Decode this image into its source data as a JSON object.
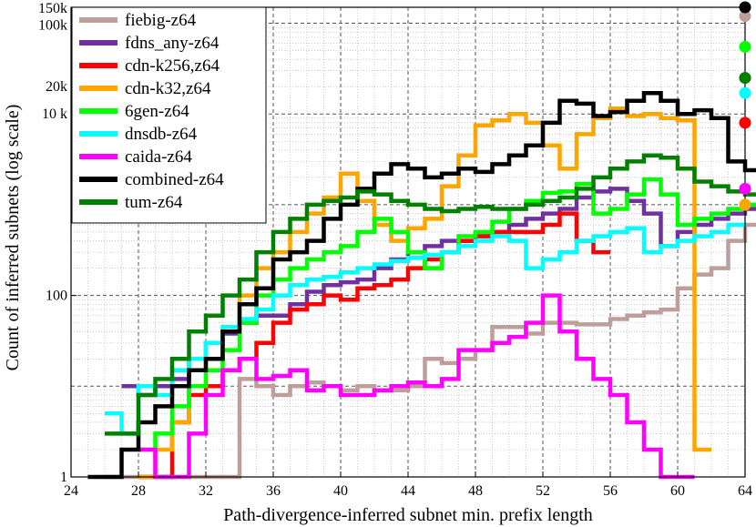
{
  "chart_data": {
    "type": "line",
    "step": true,
    "xlabel": "Path-divergence-inferred subnet min. prefix length",
    "ylabel": "Count of inferred subnets (log scale)",
    "xlim": [
      24,
      64
    ],
    "ylim": [
      1,
      150000
    ],
    "yscale": "log",
    "grid": true,
    "legend_position": "top-left",
    "x_ticks": [
      24,
      28,
      32,
      36,
      40,
      44,
      48,
      52,
      56,
      60,
      64
    ],
    "y_ticks": [
      {
        "value": 1,
        "label": "1"
      },
      {
        "value": 100,
        "label": "100"
      },
      {
        "value": 10000,
        "label": "10 k"
      },
      {
        "value": 20000,
        "label": "20k"
      },
      {
        "value": 100000,
        "label": "100k"
      },
      {
        "value": 150000,
        "label": "150k"
      }
    ],
    "series": [
      {
        "name": "fiebig-z64",
        "color": "#bc9f98",
        "x_start": 26,
        "values": [
          1,
          1,
          1,
          1,
          1,
          1,
          1,
          1,
          12,
          10,
          8,
          10,
          11,
          10,
          9,
          10,
          9,
          9,
          10,
          20,
          18,
          20,
          25,
          45,
          45,
          38,
          50,
          50,
          48,
          48,
          55,
          60,
          65,
          70,
          120,
          170,
          200,
          400,
          600
        ],
        "total": 120000
      },
      {
        "name": "fdns_any-z64",
        "color": "#7030a0",
        "x_start": 27,
        "values": [
          10,
          8,
          10,
          12,
          20,
          30,
          38,
          50,
          60,
          60,
          80,
          110,
          130,
          140,
          150,
          200,
          250,
          300,
          350,
          400,
          400,
          450,
          500,
          600,
          700,
          800,
          900,
          1200,
          1400,
          1500,
          1100,
          800,
          350,
          500,
          600,
          700,
          800,
          900
        ],
        "total": 25000
      },
      {
        "name": "cdn-k256,z64",
        "color": "#ff0000",
        "x_start": 28,
        "values": [
          1,
          1,
          4,
          8,
          10,
          15,
          20,
          30,
          50,
          70,
          80,
          100,
          90,
          120,
          130,
          150,
          200,
          250,
          300,
          400,
          450,
          500,
          500,
          500,
          600,
          800,
          400,
          300
        ],
        "total": 8000
      },
      {
        "name": "cdn-k32,z64",
        "color": "#ffa500",
        "x_start": 28,
        "values": [
          1,
          2,
          4,
          10,
          20,
          40,
          100,
          200,
          300,
          500,
          800,
          1200,
          2200,
          1100,
          600,
          400,
          550,
          700,
          1600,
          3500,
          7500,
          8500,
          10000,
          8000,
          4500,
          2500,
          6000,
          9000,
          11500,
          9500,
          10000,
          9000,
          8500,
          2
        ],
        "total": 1000
      },
      {
        "name": "6gen-z64",
        "color": "#00ff00",
        "x_start": 28,
        "values": [
          2,
          3,
          6,
          10,
          15,
          25,
          50,
          100,
          150,
          200,
          250,
          300,
          350,
          500,
          700,
          500,
          300,
          200,
          300,
          450,
          500,
          650,
          900,
          1100,
          1350,
          1400,
          1700,
          800,
          900,
          1300,
          1900,
          1300,
          600,
          700,
          800,
          900,
          1000,
          1200
        ],
        "total": 55000
      },
      {
        "name": "dnsdb-z64",
        "color": "#00ffff",
        "x_start": 26,
        "values": [
          5,
          3,
          10,
          8,
          15,
          20,
          30,
          45,
          55,
          70,
          100,
          130,
          150,
          160,
          180,
          200,
          220,
          240,
          260,
          280,
          300,
          350,
          400,
          450,
          400,
          200,
          250,
          300,
          400,
          450,
          500,
          550,
          300,
          350,
          400,
          450,
          500,
          600
        ],
        "total": 17000
      },
      {
        "name": "caida-z64",
        "color": "#ff00ff",
        "x_start": 28,
        "values": [
          2,
          1,
          1,
          3,
          8,
          15,
          20,
          12,
          13,
          15,
          9,
          10,
          8,
          8,
          9,
          10,
          11,
          10,
          12,
          25,
          25,
          30,
          35,
          50,
          100,
          40,
          20,
          12,
          8,
          4,
          2,
          1,
          1
        ],
        "total": 1500
      },
      {
        "name": "combined-z64",
        "color": "#000000",
        "x_start": 25,
        "values": [
          1,
          1,
          2,
          4,
          6,
          10,
          15,
          20,
          40,
          80,
          120,
          250,
          300,
          400,
          700,
          1000,
          1500,
          2200,
          2800,
          2500,
          2000,
          2200,
          2500,
          2300,
          2800,
          3500,
          4500,
          8000,
          14000,
          13000,
          9500,
          10500,
          14000,
          17000,
          14000,
          10000,
          11000,
          9000,
          3000,
          2400,
          1800,
          2000,
          2200,
          2500
        ],
        "total": 150000
      },
      {
        "name": "tum-z64",
        "color": "#008000",
        "x_start": 26,
        "values": [
          3,
          3,
          8,
          12,
          20,
          40,
          60,
          100,
          150,
          300,
          500,
          700,
          1000,
          1100,
          1200,
          1400,
          1300,
          1100,
          1000,
          900,
          850,
          900,
          950,
          900,
          900,
          1000,
          1100,
          1200,
          1500,
          2000,
          2500,
          3000,
          3500,
          3300,
          2500,
          1800,
          1600,
          1400,
          1300,
          1200
        ],
        "total": 25000
      }
    ]
  }
}
